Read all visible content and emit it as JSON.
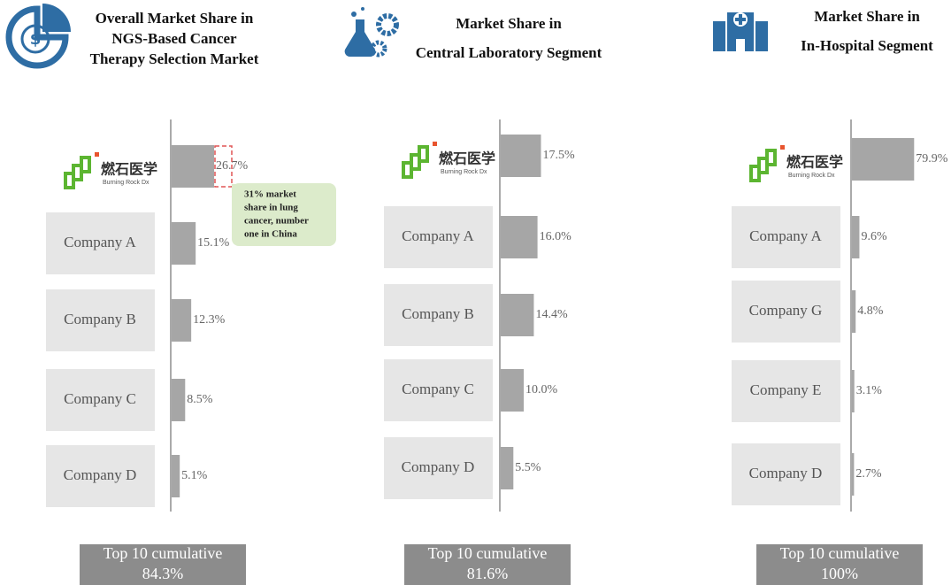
{
  "chart_data": [
    {
      "type": "bar",
      "orientation": "horizontal",
      "title_lines": [
        "Overall Market Share in",
        "NGS-Based Cancer",
        "Therapy Selection Market"
      ],
      "categories": [
        "燃石医学",
        "Company A",
        "Company B",
        "Company C",
        "Company D"
      ],
      "logo_subtitle": "Burning Rock Dx",
      "values": [
        26.7,
        15.1,
        12.3,
        8.5,
        5.1
      ],
      "value_labels": [
        "26.7%",
        "15.1%",
        "12.3%",
        "8.5%",
        "5.1%"
      ],
      "color": "#a6a6a6",
      "annotation_lines": [
        "31% market",
        "share in lung",
        "cancer, number",
        "one in China"
      ],
      "footer": {
        "label": "Top 10 cumulative",
        "value_label": "84.3%"
      }
    },
    {
      "type": "bar",
      "orientation": "horizontal",
      "title_lines": [
        "Market Share in",
        "Central Laboratory Segment"
      ],
      "categories": [
        "燃石医学",
        "Company A",
        "Company B",
        "Company C",
        "Company D"
      ],
      "logo_subtitle": "Burning Rock Dx",
      "values": [
        17.5,
        16.0,
        14.4,
        10.0,
        5.5
      ],
      "value_labels": [
        "17.5%",
        "16.0%",
        "14.4%",
        "10.0%",
        "5.5%"
      ],
      "color": "#a6a6a6",
      "footer": {
        "label": "Top 10 cumulative",
        "value_label": "81.6%"
      }
    },
    {
      "type": "bar",
      "orientation": "horizontal",
      "title_lines": [
        "Market Share in",
        "In-Hospital Segment"
      ],
      "categories": [
        "燃石医学",
        "Company A",
        "Company G",
        "Company E",
        "Company D"
      ],
      "logo_subtitle": "Burning Rock Dx",
      "values": [
        79.9,
        9.6,
        4.8,
        3.1,
        2.7
      ],
      "value_labels": [
        "79.9%",
        "9.6%",
        "4.8%",
        "3.1%",
        "2.7%"
      ],
      "color": "#a6a6a6",
      "footer": {
        "label": "Top 10 cumulative",
        "value_label": "100%"
      }
    }
  ]
}
